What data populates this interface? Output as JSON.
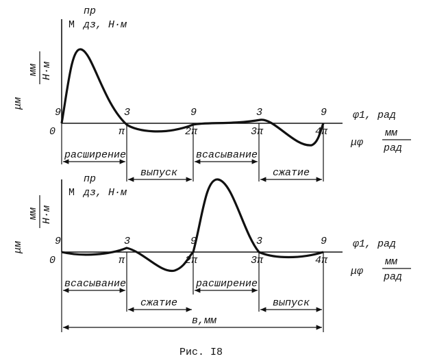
{
  "panels": [
    {
      "y_label": {
        "symbol": "M",
        "superscript": "пр",
        "subscript": "дз, Н·м"
      },
      "scale_label": {
        "symbol": "μм",
        "numerator": "мм",
        "denominator": "Н·м"
      },
      "x_axis_label": "φ1, рад",
      "x_scale_label": {
        "symbol": "μφ",
        "numerator": "мм",
        "denominator": "рад"
      },
      "x_ticks": [
        "0",
        "π",
        "2π",
        "3π",
        "4π"
      ],
      "point_labels": [
        "9",
        "3",
        "9",
        "3",
        "9"
      ],
      "strokes_upper": [
        "расширение",
        "всасывание"
      ],
      "strokes_lower": [
        "выпуск",
        "сжатие"
      ]
    },
    {
      "y_label": {
        "symbol": "M",
        "superscript": "пр",
        "subscript": "дз, Н·м"
      },
      "scale_label": {
        "symbol": "μм",
        "numerator": "мм",
        "denominator": "Н·м"
      },
      "x_axis_label": "φ1, рад",
      "x_scale_label": {
        "symbol": "μφ",
        "numerator": "мм",
        "denominator": "рад"
      },
      "x_ticks": [
        "0",
        "π",
        "2π",
        "3π",
        "4π"
      ],
      "point_labels": [
        "9",
        "3",
        "9",
        "3",
        "9"
      ],
      "strokes_upper": [
        "всасывание",
        "расширение"
      ],
      "strokes_lower": [
        "сжатие",
        "выпуск"
      ]
    }
  ],
  "figure": {
    "width_label": "в,мм",
    "caption": "Рис. I8"
  }
}
